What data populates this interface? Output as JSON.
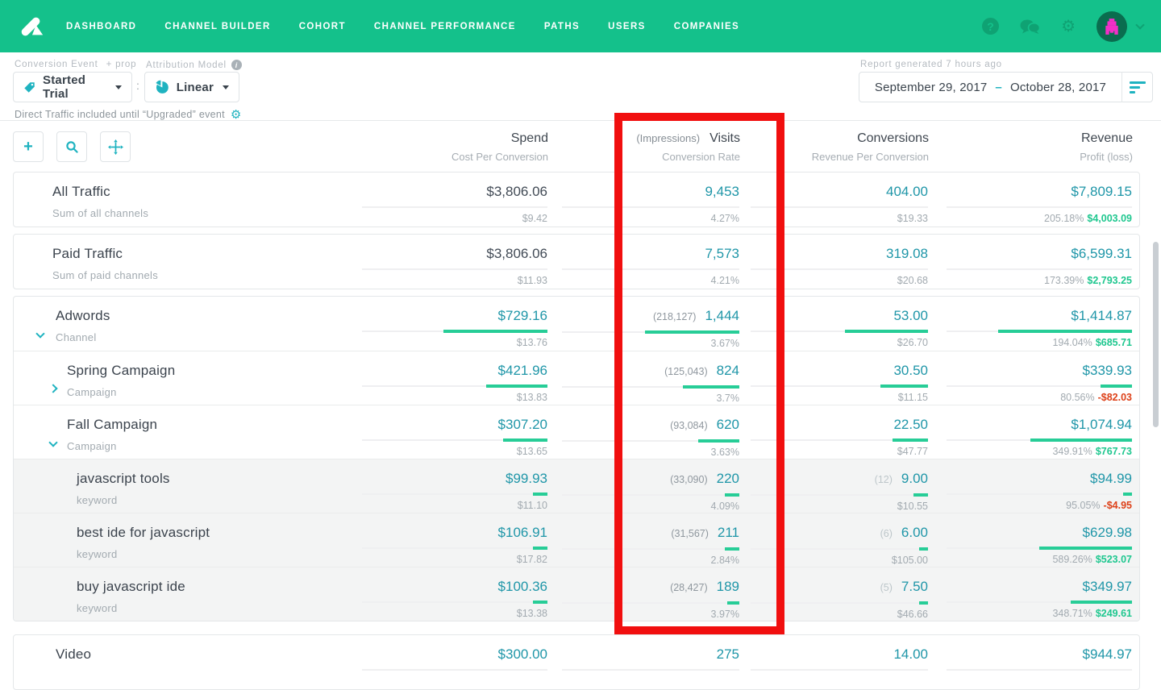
{
  "nav": {
    "items": [
      "DASHBOARD",
      "CHANNEL BUILDER",
      "COHORT",
      "CHANNEL PERFORMANCE",
      "PATHS",
      "USERS",
      "COMPANIES"
    ]
  },
  "icons": {
    "help": "?",
    "gear": "⚙",
    "info": "i",
    "plus": "+"
  },
  "filters": {
    "conversion_label": "Conversion Event",
    "prop_label": "+ prop",
    "conversion_value": "Started Trial",
    "separator": ":",
    "attribution_label": "Attribution Model",
    "attribution_value": "Linear",
    "note": "Direct Traffic included until “Upgraded” event",
    "report_note": "Report generated 7 hours ago",
    "date_start": "September 29, 2017",
    "date_dash": "–",
    "date_end": "October 28, 2017"
  },
  "table": {
    "header": {
      "spend": {
        "title": "Spend",
        "sub": "Cost Per Conversion"
      },
      "visits": {
        "prefix": "(Impressions)",
        "title": "Visits",
        "sub": "Conversion Rate"
      },
      "conversions": {
        "title": "Conversions",
        "sub": "Revenue Per Conversion"
      },
      "revenue": {
        "title": "Revenue",
        "sub": "Profit (loss)"
      }
    },
    "rows": [
      {
        "group": 1,
        "name": "All Traffic",
        "subtitle": "Sum of all channels",
        "indent": 0,
        "chevron": null,
        "shaded": false,
        "cells": {
          "spend": {
            "main": "$3,806.06",
            "sub": "$9.42",
            "dark": true,
            "bar": 0
          },
          "visits": {
            "main": "9,453",
            "sub": "4.27%",
            "bar": 0
          },
          "conversions": {
            "main": "404.00",
            "sub": "$19.33",
            "bar": 0
          },
          "revenue": {
            "main": "$7,809.15",
            "pct": "205.18%",
            "profit": "$4,003.09",
            "profit_positive": true,
            "bar": 0
          }
        }
      },
      {
        "group": 2,
        "name": "Paid Traffic",
        "subtitle": "Sum of paid channels",
        "indent": 0,
        "chevron": null,
        "shaded": false,
        "cells": {
          "spend": {
            "main": "$3,806.06",
            "sub": "$11.93",
            "dark": true,
            "bar": 0
          },
          "visits": {
            "main": "7,573",
            "sub": "4.21%",
            "bar": 0
          },
          "conversions": {
            "main": "319.08",
            "sub": "$20.68",
            "bar": 0
          },
          "revenue": {
            "main": "$6,599.31",
            "pct": "173.39%",
            "profit": "$2,793.25",
            "profit_positive": true,
            "bar": 0
          }
        }
      },
      {
        "group": 3,
        "name": "Adwords",
        "subtitle": "Channel",
        "indent": 1,
        "chevron": "down",
        "shaded": false,
        "cells": {
          "spend": {
            "main": "$729.16",
            "sub": "$13.76",
            "bar": 0.56
          },
          "visits": {
            "prefix": "(218,127)",
            "main": "1,444",
            "sub": "3.67%",
            "bar": 0.53
          },
          "conversions": {
            "main": "53.00",
            "sub": "$26.70",
            "bar": 0.47
          },
          "revenue": {
            "main": "$1,414.87",
            "pct": "194.04%",
            "profit": "$685.71",
            "profit_positive": true,
            "bar": 0.72
          }
        }
      },
      {
        "group": 3,
        "name": "Spring Campaign",
        "subtitle": "Campaign",
        "indent": 2,
        "chevron": "right",
        "shaded": false,
        "cells": {
          "spend": {
            "main": "$421.96",
            "sub": "$13.83",
            "bar": 0.33
          },
          "visits": {
            "prefix": "(125,043)",
            "main": "824",
            "sub": "3.7%",
            "bar": 0.32
          },
          "conversions": {
            "main": "30.50",
            "sub": "$11.15",
            "bar": 0.27
          },
          "revenue": {
            "main": "$339.93",
            "pct": "80.56%",
            "profit": "-$82.03",
            "profit_positive": false,
            "bar": 0.17
          }
        }
      },
      {
        "group": 3,
        "name": "Fall Campaign",
        "subtitle": "Campaign",
        "indent": 2,
        "chevron": "down",
        "shaded": false,
        "cells": {
          "spend": {
            "main": "$307.20",
            "sub": "$13.65",
            "bar": 0.24
          },
          "visits": {
            "prefix": "(93,084)",
            "main": "620",
            "sub": "3.63%",
            "bar": 0.23
          },
          "conversions": {
            "main": "22.50",
            "sub": "$47.77",
            "bar": 0.2
          },
          "revenue": {
            "main": "$1,074.94",
            "pct": "349.91%",
            "profit": "$767.73",
            "profit_positive": true,
            "bar": 0.55
          }
        }
      },
      {
        "group": 3,
        "name": "javascript tools",
        "subtitle": "keyword",
        "indent": 3,
        "chevron": null,
        "shaded": true,
        "cells": {
          "spend": {
            "main": "$99.93",
            "sub": "$11.10",
            "bar": 0.08
          },
          "visits": {
            "prefix": "(33,090)",
            "main": "220",
            "sub": "4.09%",
            "bar": 0.08
          },
          "conversions": {
            "prefix": "(12)",
            "main": "9.00",
            "sub": "$10.55",
            "bar": 0.08
          },
          "revenue": {
            "main": "$94.99",
            "pct": "95.05%",
            "profit": "-$4.95",
            "profit_positive": false,
            "bar": 0.05
          }
        }
      },
      {
        "group": 3,
        "name": "best ide for javascript",
        "subtitle": "keyword",
        "indent": 3,
        "chevron": null,
        "shaded": true,
        "cells": {
          "spend": {
            "main": "$106.91",
            "sub": "$17.82",
            "bar": 0.08
          },
          "visits": {
            "prefix": "(31,567)",
            "main": "211",
            "sub": "2.84%",
            "bar": 0.08
          },
          "conversions": {
            "prefix": "(6)",
            "main": "6.00",
            "sub": "$105.00",
            "bar": 0.05
          },
          "revenue": {
            "main": "$629.98",
            "pct": "589.26%",
            "profit": "$523.07",
            "profit_positive": true,
            "bar": 0.5
          }
        }
      },
      {
        "group": 3,
        "name": "buy javascript ide",
        "subtitle": "keyword",
        "indent": 3,
        "chevron": null,
        "shaded": true,
        "cells": {
          "spend": {
            "main": "$100.36",
            "sub": "$13.38",
            "bar": 0.08
          },
          "visits": {
            "prefix": "(28,427)",
            "main": "189",
            "sub": "3.97%",
            "bar": 0.07
          },
          "conversions": {
            "prefix": "(5)",
            "main": "7.50",
            "sub": "$46.66",
            "bar": 0.05
          },
          "revenue": {
            "main": "$349.97",
            "pct": "348.71%",
            "profit": "$249.61",
            "profit_positive": true,
            "bar": 0.33
          }
        }
      },
      {
        "group": 4,
        "gap": true,
        "name": "Video",
        "subtitle": "",
        "indent": 1,
        "chevron": null,
        "shaded": false,
        "cells": {
          "spend": {
            "main": "$300.00",
            "sub": "",
            "bar": 0
          },
          "visits": {
            "main": "275",
            "sub": "",
            "bar": 0
          },
          "conversions": {
            "main": "14.00",
            "sub": "",
            "bar": 0
          },
          "revenue": {
            "main": "$944.97",
            "pct": "",
            "profit": "",
            "profit_positive": true,
            "bar": 0
          }
        }
      }
    ]
  },
  "colors": {
    "nav_green": "#14c18b",
    "nav_icon_green": "#0fa273",
    "teal_value": "#1f96a8",
    "teal_icon": "#1fb3c0",
    "bar_green": "#27cd97",
    "profit_green": "#1fc78f",
    "negative_red": "#dd4018",
    "annotation_red": "#f10f0f"
  }
}
